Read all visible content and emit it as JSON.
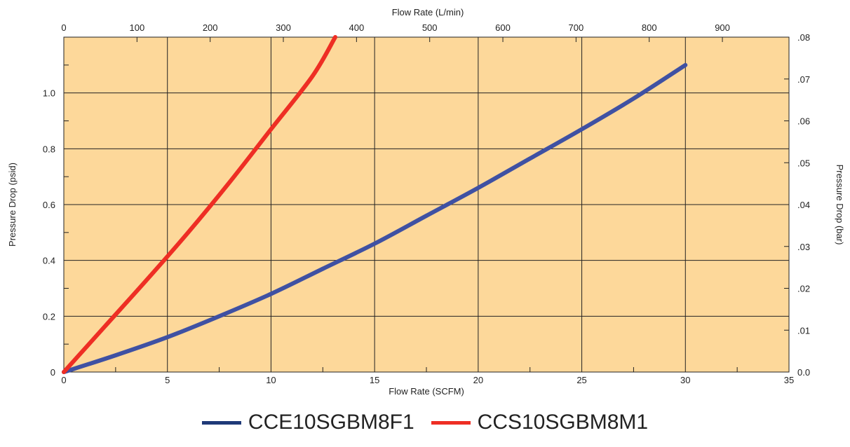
{
  "chart_data": {
    "type": "line",
    "xlabel": "Flow Rate (SCFM)",
    "xlabel_top": "Flow Rate (L/min)",
    "ylabel": "Pressure Drop (psid)",
    "ylabel_right": "Pressure Drop (bar)",
    "xlim": [
      0,
      35
    ],
    "ylim": [
      0,
      1.2
    ],
    "x_top_lim": [
      0,
      991
    ],
    "y_right_lim": [
      0,
      0.08
    ],
    "grid": true,
    "legend_position": "bottom",
    "background_color": "#fdd89a",
    "x_ticks": [
      {
        "value": 0,
        "label": "0"
      },
      {
        "value": 5,
        "label": "5"
      },
      {
        "value": 10,
        "label": "10"
      },
      {
        "value": 15,
        "label": "15"
      },
      {
        "value": 20,
        "label": "20"
      },
      {
        "value": 25,
        "label": "25"
      },
      {
        "value": 30,
        "label": "30"
      },
      {
        "value": 35,
        "label": "35"
      }
    ],
    "y_ticks": [
      {
        "value": 0,
        "label": "0"
      },
      {
        "value": 0.2,
        "label": "0.2"
      },
      {
        "value": 0.4,
        "label": "0.4"
      },
      {
        "value": 0.6,
        "label": "0.6"
      },
      {
        "value": 0.8,
        "label": "0.8"
      },
      {
        "value": 1.0,
        "label": "1.0"
      }
    ],
    "x_top_ticks": [
      {
        "value": 0,
        "label": "0"
      },
      {
        "value": 100,
        "label": "100"
      },
      {
        "value": 200,
        "label": "200"
      },
      {
        "value": 300,
        "label": "300"
      },
      {
        "value": 400,
        "label": "400"
      },
      {
        "value": 500,
        "label": "500"
      },
      {
        "value": 600,
        "label": "600"
      },
      {
        "value": 700,
        "label": "700"
      },
      {
        "value": 800,
        "label": "800"
      },
      {
        "value": 900,
        "label": "900"
      }
    ],
    "y_right_ticks": [
      {
        "value": 0,
        "label": "0.0"
      },
      {
        "value": 0.01,
        "label": ".01"
      },
      {
        "value": 0.02,
        "label": ".02"
      },
      {
        "value": 0.03,
        "label": ".03"
      },
      {
        "value": 0.04,
        "label": ".04"
      },
      {
        "value": 0.05,
        "label": ".05"
      },
      {
        "value": 0.06,
        "label": ".06"
      },
      {
        "value": 0.07,
        "label": ".07"
      },
      {
        "value": 0.08,
        "label": ".08"
      }
    ],
    "series": [
      {
        "name": "CCE10SGBM8F1",
        "color": "#3f51a3",
        "legend_color": "#1f3a78",
        "x": [
          0,
          2.5,
          5,
          7.5,
          10,
          12.5,
          15,
          17.5,
          20,
          22.5,
          25,
          27.5,
          30
        ],
        "y": [
          0,
          0.06,
          0.125,
          0.2,
          0.28,
          0.37,
          0.46,
          0.56,
          0.66,
          0.765,
          0.87,
          0.98,
          1.1
        ]
      },
      {
        "name": "CCS10SGBM8M1",
        "color": "#ee2e24",
        "legend_color": "#ee2e24",
        "x": [
          0,
          2,
          4,
          6,
          8,
          10,
          12,
          13.1
        ],
        "y": [
          0,
          0.165,
          0.33,
          0.5,
          0.68,
          0.87,
          1.06,
          1.2
        ]
      }
    ]
  }
}
